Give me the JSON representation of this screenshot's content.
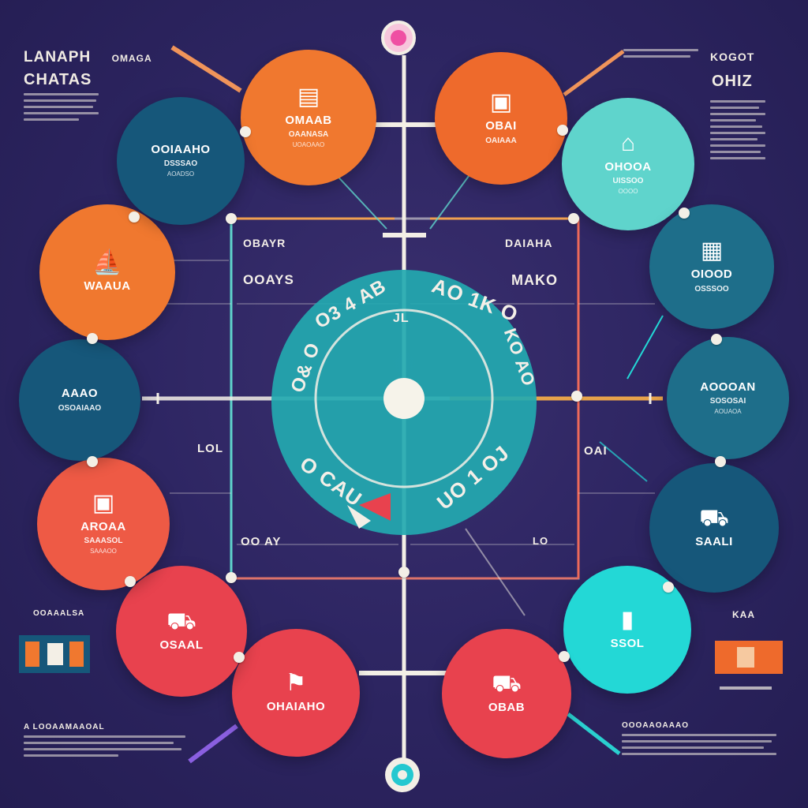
{
  "colors": {
    "background": "#2e2663",
    "orange": "#f0782f",
    "orange_deep": "#ee6a2c",
    "coral": "#ee5a45",
    "red": "#e8424e",
    "teal_dark": "#16577a",
    "teal_mid": "#1e6e8a",
    "teal_light": "#5fd4cc",
    "cyan": "#23d8d6",
    "center": "#23a9b0",
    "line": "#f3efe6",
    "pink": "#f7a7cf"
  },
  "header": {
    "top_left_title": "LANAPH",
    "top_left_subtitle": "CHATAS",
    "top_left_tag": "OMAGA",
    "top_right_tag": "KOGOT",
    "top_right_title": "OHIZ"
  },
  "center": {
    "ring_top_left": "O3 4 AB",
    "ring_top_right": "AO 1K O",
    "ring_left": "O& O",
    "ring_bottom_left": "O CAU",
    "ring_bottom_right": "UO 1 OJ",
    "ring_right": "KO AO",
    "ring_mark": "JL"
  },
  "panel": {
    "top_left_heading": "OBAYR",
    "top_left_value": "OOAYS",
    "top_right_heading": "DAIAHA",
    "top_right_value": "MAKO",
    "mid_left": "LOL",
    "mid_right": "OAI",
    "bottom_left": "OO AY",
    "bottom_right": "LO"
  },
  "nodes": [
    {
      "id": "n1",
      "icon": "doc-icon",
      "glyph": "▤",
      "t1": "OMAAB",
      "t2": "OAANASA",
      "t3": "UOAOAAO",
      "color_key": "orange"
    },
    {
      "id": "n2",
      "icon": "bag-icon",
      "glyph": "▣",
      "t1": "OBAI",
      "t2": "OAIAAA",
      "t3": "",
      "color_key": "orange_deep"
    },
    {
      "id": "n3",
      "icon": "laptop-icon",
      "glyph": "⌂",
      "t1": "OHOOA",
      "t2": "UISSOO",
      "t3": "OOOO",
      "color_key": "teal_light"
    },
    {
      "id": "n4",
      "icon": "chart-icon",
      "glyph": "▦",
      "t1": "OIOOD",
      "t2": "OSSSOO",
      "t3": "",
      "color_key": "teal_mid"
    },
    {
      "id": "n5",
      "icon": "list-icon",
      "glyph": "",
      "t1": "AOOOAN",
      "t2": "SOSOSAI",
      "t3": "AOUAOA",
      "color_key": "teal_mid"
    },
    {
      "id": "n6",
      "icon": "car-icon",
      "glyph": "⛟",
      "t1": "SAALI",
      "t2": "",
      "t3": "",
      "color_key": "teal_dark"
    },
    {
      "id": "n7",
      "icon": "tag-icon",
      "glyph": "▮",
      "t1": "SSOL",
      "t2": "",
      "t3": "",
      "color_key": "cyan"
    },
    {
      "id": "n8",
      "icon": "cart-icon",
      "glyph": "⛟",
      "t1": "OBAB",
      "t2": "",
      "t3": "",
      "color_key": "red"
    },
    {
      "id": "n9",
      "icon": "flag-icon",
      "glyph": "⚑",
      "t1": "OHAIAHO",
      "t2": "",
      "t3": "",
      "color_key": "red"
    },
    {
      "id": "n10",
      "icon": "truck-icon",
      "glyph": "⛟",
      "t1": "OSAAL",
      "t2": "",
      "t3": "",
      "color_key": "red"
    },
    {
      "id": "n11",
      "icon": "box-icon",
      "glyph": "▣",
      "t1": "AROAA",
      "t2": "SAAASOL",
      "t3": "SAAAOO",
      "color_key": "coral"
    },
    {
      "id": "n12",
      "icon": "people-icon",
      "glyph": "",
      "t1": "AAAO",
      "t2": "OSOAIAAO",
      "t3": "",
      "color_key": "teal_dark"
    },
    {
      "id": "n13",
      "icon": "ship-icon",
      "glyph": "⛵",
      "t1": "WAAUA",
      "t2": "",
      "t3": "",
      "color_key": "orange"
    },
    {
      "id": "n14",
      "icon": "person-icon",
      "glyph": "",
      "t1": "OOIAAHO",
      "t2": "DSSSAO",
      "t3": "AOADSO",
      "color_key": "teal_dark"
    }
  ],
  "side": {
    "left_bottom_label": "OOAAALSA",
    "right_bottom_label": "KAA",
    "footer_left": "A LOOAAMAAOAL",
    "footer_right": "OOOAAOAAAO"
  }
}
